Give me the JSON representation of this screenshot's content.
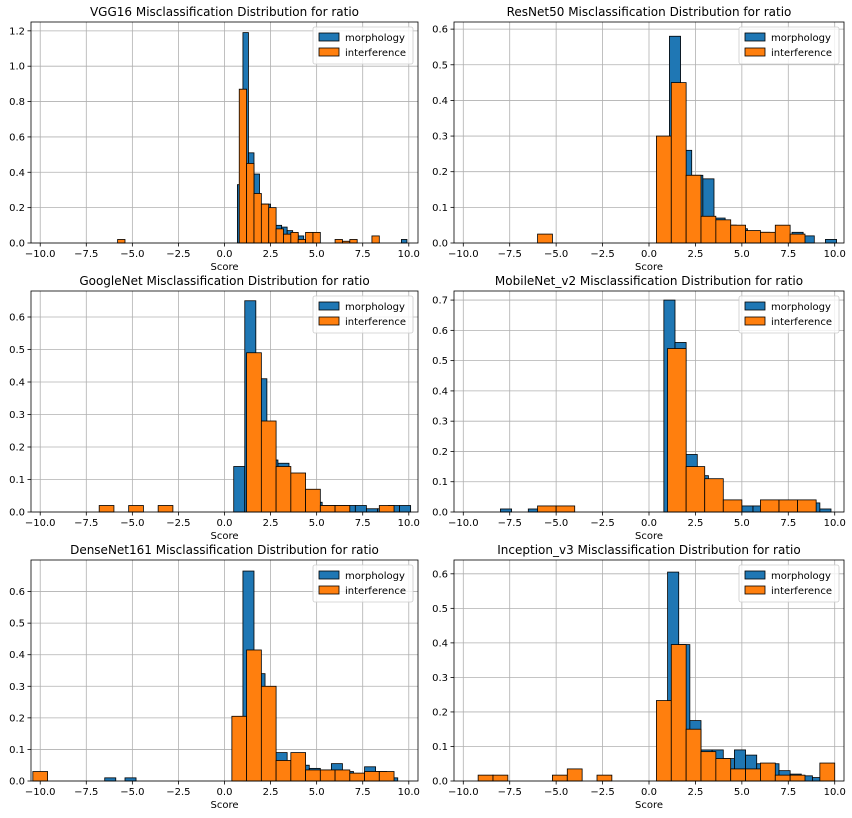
{
  "figure": {
    "colors": {
      "morphology": "#1f77b4",
      "interference": "#ff7f0e",
      "edge": "#000000",
      "grid": "#b0b0b0"
    }
  },
  "chart_data": [
    {
      "type": "bar",
      "title": "VGG16 Misclassification Distribution for ratio",
      "xlabel": "Score",
      "ylabel": "",
      "xlim": [
        -10.5,
        10.5
      ],
      "ylim": [
        0,
        1.25
      ],
      "xticks": [
        -10,
        -7.5,
        -5,
        -2.5,
        0,
        2.5,
        5,
        7.5,
        10
      ],
      "yticks": [
        0,
        0.2,
        0.4,
        0.6,
        0.8,
        1.0,
        1.2
      ],
      "xtick_labels": [
        "−10.0",
        "−7.5",
        "−5.0",
        "−2.5",
        "0.0",
        "2.5",
        "5.0",
        "7.5",
        "10.0"
      ],
      "ytick_labels": [
        "0.0",
        "0.2",
        "0.4",
        "0.6",
        "0.8",
        "1.0",
        "1.2"
      ],
      "legend": "top-right",
      "grid": true,
      "series": [
        {
          "name": "morphology",
          "bin_width": 0.3,
          "bins": [
            [
              0.85,
              0.33
            ],
            [
              1.15,
              1.19
            ],
            [
              1.45,
              0.51
            ],
            [
              1.75,
              0.39
            ],
            [
              2.05,
              0.22
            ],
            [
              2.35,
              0.22
            ],
            [
              2.65,
              0.19
            ],
            [
              2.95,
              0.1
            ],
            [
              3.25,
              0.09
            ],
            [
              3.55,
              0.07
            ],
            [
              3.85,
              0.05
            ],
            [
              4.15,
              0.04
            ],
            [
              9.75,
              0.02
            ]
          ]
        },
        {
          "name": "interference",
          "bin_width": 0.4,
          "bins": [
            [
              -5.6,
              0.02
            ],
            [
              1.0,
              0.87
            ],
            [
              1.4,
              0.45
            ],
            [
              1.8,
              0.28
            ],
            [
              2.2,
              0.22
            ],
            [
              2.6,
              0.2
            ],
            [
              3.0,
              0.08
            ],
            [
              3.4,
              0.05
            ],
            [
              3.8,
              0.06
            ],
            [
              4.2,
              0.02
            ],
            [
              4.6,
              0.06
            ],
            [
              5.0,
              0.06
            ],
            [
              6.2,
              0.02
            ],
            [
              6.6,
              0.01
            ],
            [
              7.0,
              0.02
            ],
            [
              8.2,
              0.04
            ]
          ]
        }
      ]
    },
    {
      "type": "bar",
      "title": "ResNet50 Misclassification Distribution for ratio",
      "xlabel": "Score",
      "ylabel": "",
      "xlim": [
        -10.5,
        10.5
      ],
      "ylim": [
        0,
        0.62
      ],
      "xticks": [
        -10,
        -7.5,
        -5,
        -2.5,
        0,
        2.5,
        5,
        7.5,
        10
      ],
      "yticks": [
        0,
        0.1,
        0.2,
        0.3,
        0.4,
        0.5,
        0.6
      ],
      "xtick_labels": [
        "−10.0",
        "−7.5",
        "−5.0",
        "−2.5",
        "0.0",
        "2.5",
        "5.0",
        "7.5",
        "10.0"
      ],
      "ytick_labels": [
        "0.0",
        "0.1",
        "0.2",
        "0.3",
        "0.4",
        "0.5",
        "0.6"
      ],
      "legend": "top-right",
      "grid": true,
      "series": [
        {
          "name": "morphology",
          "bin_width": 0.6,
          "bins": [
            [
              1.4,
              0.58
            ],
            [
              2.0,
              0.26
            ],
            [
              2.6,
              0.19
            ],
            [
              3.2,
              0.18
            ],
            [
              3.8,
              0.07
            ],
            [
              4.4,
              0.05
            ],
            [
              5.0,
              0.04
            ],
            [
              5.6,
              0.03
            ],
            [
              6.2,
              0.03
            ],
            [
              6.8,
              0.02
            ],
            [
              7.4,
              0.02
            ],
            [
              8.0,
              0.03
            ],
            [
              8.6,
              0.02
            ],
            [
              9.8,
              0.01
            ]
          ]
        },
        {
          "name": "interference",
          "bin_width": 0.8,
          "bins": [
            [
              -5.6,
              0.025
            ],
            [
              0.8,
              0.3
            ],
            [
              1.6,
              0.45
            ],
            [
              2.4,
              0.19
            ],
            [
              3.2,
              0.075
            ],
            [
              4.0,
              0.065
            ],
            [
              4.8,
              0.05
            ],
            [
              5.6,
              0.035
            ],
            [
              6.4,
              0.03
            ],
            [
              7.2,
              0.05
            ],
            [
              8.0,
              0.025
            ]
          ]
        }
      ]
    },
    {
      "type": "bar",
      "title": "GoogleNet Misclassification Distribution for ratio",
      "xlabel": "Score",
      "ylabel": "",
      "xlim": [
        -10.5,
        10.5
      ],
      "ylim": [
        0,
        0.68
      ],
      "xticks": [
        -10,
        -7.5,
        -5,
        -2.5,
        0,
        2.5,
        5,
        7.5,
        10
      ],
      "yticks": [
        0,
        0.1,
        0.2,
        0.3,
        0.4,
        0.5,
        0.6
      ],
      "xtick_labels": [
        "−10.0",
        "−7.5",
        "−5.0",
        "−2.5",
        "0.0",
        "2.5",
        "5.0",
        "7.5",
        "10.0"
      ],
      "ytick_labels": [
        "0.0",
        "0.1",
        "0.2",
        "0.3",
        "0.4",
        "0.5",
        "0.6"
      ],
      "legend": "top-right",
      "grid": true,
      "series": [
        {
          "name": "morphology",
          "bin_width": 0.6,
          "bins": [
            [
              0.8,
              0.14
            ],
            [
              1.4,
              0.65
            ],
            [
              2.0,
              0.41
            ],
            [
              2.6,
              0.16
            ],
            [
              3.2,
              0.15
            ],
            [
              3.8,
              0.11
            ],
            [
              4.4,
              0.06
            ],
            [
              5.0,
              0.03
            ],
            [
              5.6,
              0.02
            ],
            [
              6.2,
              0.02
            ],
            [
              6.8,
              0.02
            ],
            [
              7.4,
              0.02
            ],
            [
              8.0,
              0.01
            ],
            [
              8.6,
              0.01
            ],
            [
              9.2,
              0.02
            ],
            [
              9.8,
              0.02
            ]
          ]
        },
        {
          "name": "interference",
          "bin_width": 0.8,
          "bins": [
            [
              -6.4,
              0.02
            ],
            [
              -4.8,
              0.02
            ],
            [
              -3.2,
              0.02
            ],
            [
              1.6,
              0.49
            ],
            [
              2.4,
              0.28
            ],
            [
              3.2,
              0.14
            ],
            [
              4.0,
              0.12
            ],
            [
              4.8,
              0.07
            ],
            [
              5.6,
              0.02
            ],
            [
              6.4,
              0.02
            ],
            [
              8.8,
              0.02
            ]
          ]
        }
      ]
    },
    {
      "type": "bar",
      "title": "MobileNet_v2 Misclassification Distribution for ratio",
      "xlabel": "Score",
      "ylabel": "",
      "xlim": [
        -10.5,
        10.5
      ],
      "ylim": [
        0,
        0.73
      ],
      "xticks": [
        -10,
        -7.5,
        -5,
        -2.5,
        0,
        2.5,
        5,
        7.5,
        10
      ],
      "yticks": [
        0,
        0.1,
        0.2,
        0.3,
        0.4,
        0.5,
        0.6,
        0.7
      ],
      "xtick_labels": [
        "−10.0",
        "−7.5",
        "−5.0",
        "−2.5",
        "0.0",
        "2.5",
        "5.0",
        "7.5",
        "10.0"
      ],
      "ytick_labels": [
        "0.0",
        "0.1",
        "0.2",
        "0.3",
        "0.4",
        "0.5",
        "0.6",
        "0.7"
      ],
      "legend": "top-right",
      "grid": true,
      "series": [
        {
          "name": "morphology",
          "bin_width": 0.6,
          "bins": [
            [
              -7.7,
              0.01
            ],
            [
              -6.2,
              0.01
            ],
            [
              1.1,
              0.7
            ],
            [
              1.7,
              0.56
            ],
            [
              2.3,
              0.19
            ],
            [
              2.9,
              0.12
            ],
            [
              3.5,
              0.05
            ],
            [
              4.1,
              0.03
            ],
            [
              4.7,
              0.02
            ],
            [
              5.3,
              0.02
            ],
            [
              5.9,
              0.02
            ],
            [
              6.5,
              0.03
            ],
            [
              7.1,
              0.02
            ],
            [
              7.7,
              0.02
            ],
            [
              8.3,
              0.02
            ],
            [
              8.9,
              0.03
            ],
            [
              9.5,
              0.01
            ]
          ]
        },
        {
          "name": "interference",
          "bin_width": 1.0,
          "bins": [
            [
              -5.5,
              0.02
            ],
            [
              -4.5,
              0.02
            ],
            [
              1.5,
              0.54
            ],
            [
              2.5,
              0.15
            ],
            [
              3.5,
              0.11
            ],
            [
              4.5,
              0.04
            ],
            [
              6.5,
              0.04
            ],
            [
              7.5,
              0.04
            ],
            [
              8.5,
              0.04
            ]
          ]
        }
      ]
    },
    {
      "type": "bar",
      "title": "DenseNet161 Misclassification Distribution for ratio",
      "xlabel": "Score",
      "ylabel": "",
      "xlim": [
        -10.5,
        10.5
      ],
      "ylim": [
        0,
        0.7
      ],
      "xticks": [
        -10,
        -7.5,
        -5,
        -2.5,
        0,
        2.5,
        5,
        7.5,
        10
      ],
      "yticks": [
        0,
        0.1,
        0.2,
        0.3,
        0.4,
        0.5,
        0.6
      ],
      "xtick_labels": [
        "−10.0",
        "−7.5",
        "−5.0",
        "−2.5",
        "0.0",
        "2.5",
        "5.0",
        "7.5",
        "10.0"
      ],
      "ytick_labels": [
        "0.0",
        "0.1",
        "0.2",
        "0.3",
        "0.4",
        "0.5",
        "0.6"
      ],
      "legend": "top-right",
      "grid": true,
      "series": [
        {
          "name": "morphology",
          "bin_width": 0.6,
          "bins": [
            [
              -6.2,
              0.01
            ],
            [
              -5.1,
              0.01
            ],
            [
              1.3,
              0.665
            ],
            [
              1.9,
              0.34
            ],
            [
              2.5,
              0.09
            ],
            [
              3.1,
              0.09
            ],
            [
              3.7,
              0.06
            ],
            [
              4.3,
              0.05
            ],
            [
              4.9,
              0.04
            ],
            [
              5.5,
              0.035
            ],
            [
              6.1,
              0.055
            ],
            [
              6.7,
              0.03
            ],
            [
              7.3,
              0.02
            ],
            [
              7.9,
              0.045
            ],
            [
              8.5,
              0.03
            ],
            [
              9.1,
              0.01
            ]
          ]
        },
        {
          "name": "interference",
          "bin_width": 0.8,
          "bins": [
            [
              -10.0,
              0.03
            ],
            [
              0.8,
              0.205
            ],
            [
              1.6,
              0.415
            ],
            [
              2.4,
              0.3
            ],
            [
              3.2,
              0.065
            ],
            [
              4.0,
              0.09
            ],
            [
              4.8,
              0.035
            ],
            [
              5.6,
              0.035
            ],
            [
              6.4,
              0.035
            ],
            [
              7.2,
              0.025
            ],
            [
              8.0,
              0.03
            ],
            [
              8.8,
              0.03
            ]
          ]
        }
      ]
    },
    {
      "type": "bar",
      "title": "Inception_v3 Misclassification Distribution for ratio",
      "xlabel": "Score",
      "ylabel": "",
      "xlim": [
        -10.5,
        10.5
      ],
      "ylim": [
        0,
        0.64
      ],
      "xticks": [
        -10,
        -7.5,
        -5,
        -2.5,
        0,
        2.5,
        5,
        7.5,
        10
      ],
      "yticks": [
        0,
        0.1,
        0.2,
        0.3,
        0.4,
        0.5,
        0.6
      ],
      "xtick_labels": [
        "−10.0",
        "−7.5",
        "−5.0",
        "−2.5",
        "0.0",
        "2.5",
        "5.0",
        "7.5",
        "10.0"
      ],
      "ytick_labels": [
        "0.0",
        "0.1",
        "0.2",
        "0.3",
        "0.4",
        "0.5",
        "0.6"
      ],
      "legend": "top-right",
      "grid": true,
      "series": [
        {
          "name": "morphology",
          "bin_width": 0.6,
          "bins": [
            [
              1.3,
              0.605
            ],
            [
              1.9,
              0.395
            ],
            [
              2.5,
              0.175
            ],
            [
              3.1,
              0.09
            ],
            [
              3.7,
              0.09
            ],
            [
              4.3,
              0.065
            ],
            [
              4.9,
              0.09
            ],
            [
              5.5,
              0.075
            ],
            [
              6.1,
              0.05
            ],
            [
              6.7,
              0.05
            ],
            [
              7.3,
              0.03
            ],
            [
              7.9,
              0.02
            ],
            [
              8.5,
              0.015
            ],
            [
              9.1,
              0.01
            ]
          ]
        },
        {
          "name": "interference",
          "bin_width": 0.8,
          "bins": [
            [
              -8.8,
              0.017
            ],
            [
              -8.0,
              0.017
            ],
            [
              -4.8,
              0.017
            ],
            [
              -4.0,
              0.035
            ],
            [
              -2.4,
              0.017
            ],
            [
              0.8,
              0.233
            ],
            [
              1.6,
              0.395
            ],
            [
              2.4,
              0.15
            ],
            [
              3.2,
              0.085
            ],
            [
              4.0,
              0.065
            ],
            [
              4.8,
              0.035
            ],
            [
              5.6,
              0.035
            ],
            [
              6.4,
              0.052
            ],
            [
              7.2,
              0.017
            ],
            [
              8.0,
              0.017
            ],
            [
              9.6,
              0.052
            ]
          ]
        }
      ]
    }
  ]
}
